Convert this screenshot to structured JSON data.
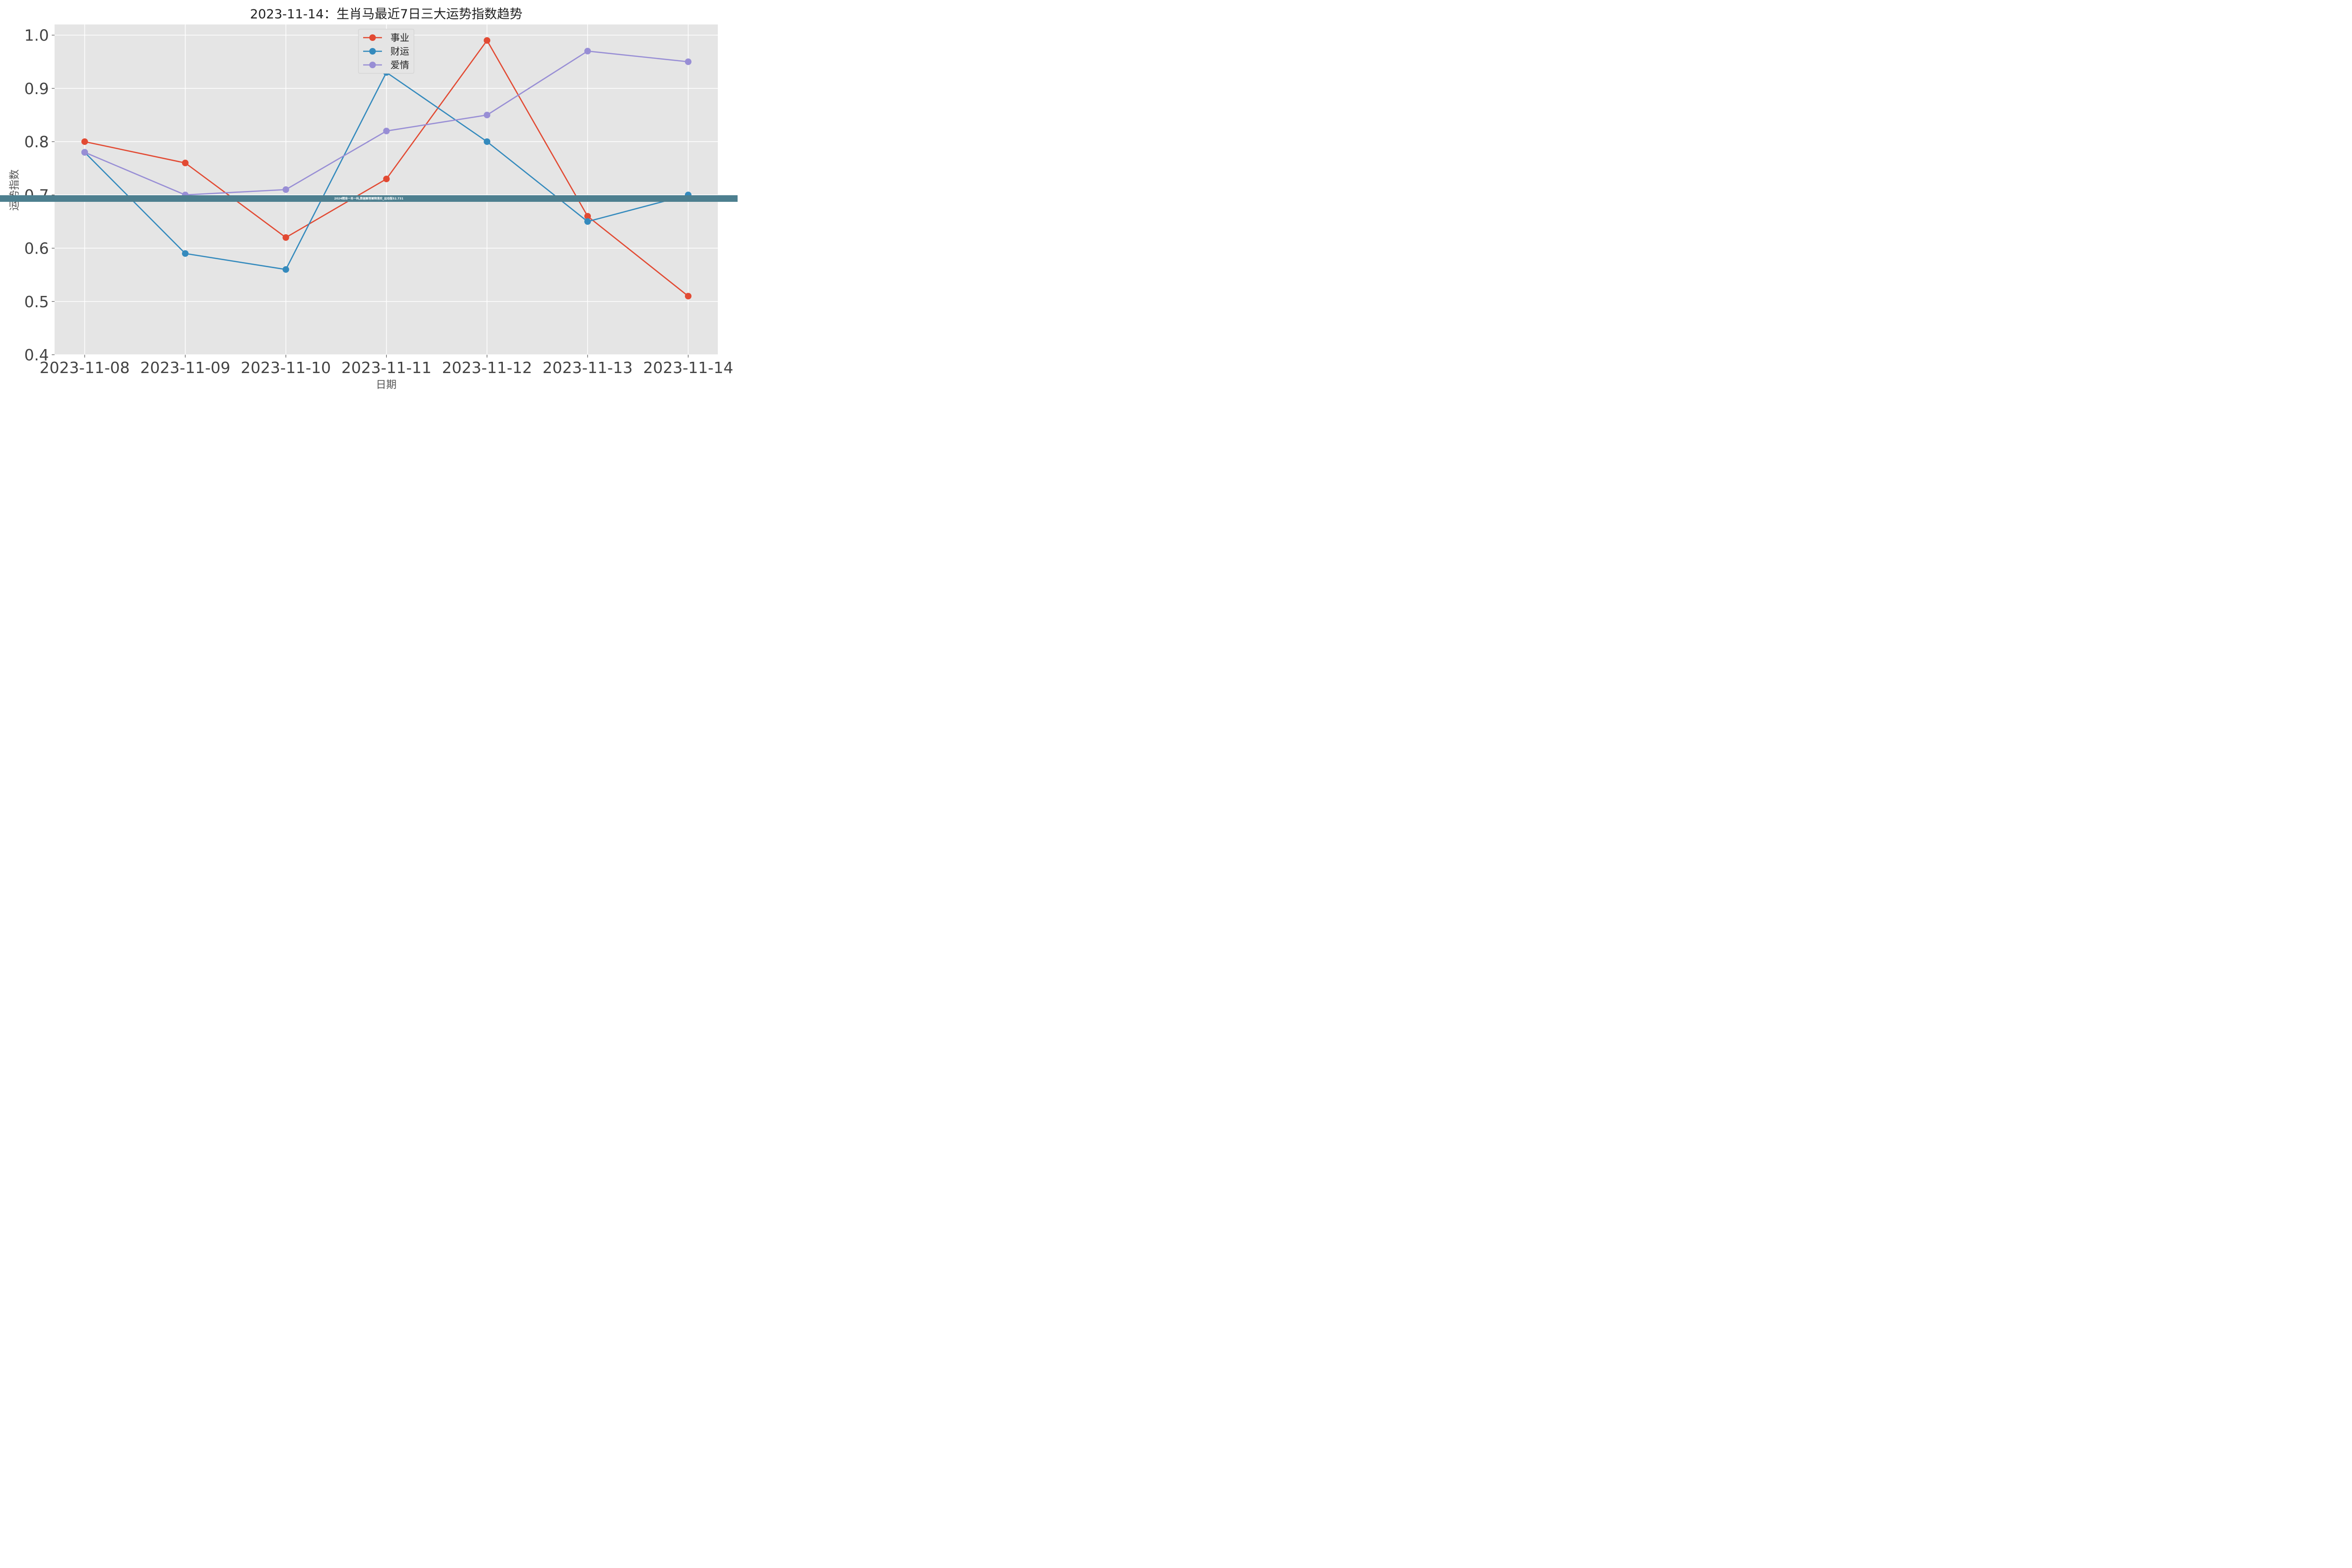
{
  "chart_data": {
    "type": "line",
    "title": "2023-11-14：生肖马最近7日三大运势指数趋势",
    "xlabel": "日期",
    "ylabel": "运势指数",
    "categories": [
      "2023-11-08",
      "2023-11-09",
      "2023-11-10",
      "2023-11-11",
      "2023-11-12",
      "2023-11-13",
      "2023-11-14"
    ],
    "ylim": [
      0.4,
      1.02
    ],
    "yticks": [
      "0.4",
      "0.5",
      "0.6",
      "0.7",
      "0.8",
      "0.9",
      "1.0"
    ],
    "grid": true,
    "legend_position": "top-center",
    "series": [
      {
        "name": "事业",
        "color": "#e24a33",
        "values": [
          0.8,
          0.76,
          0.62,
          0.73,
          0.99,
          0.66,
          0.51
        ]
      },
      {
        "name": "财运",
        "color": "#348abd",
        "values": [
          0.78,
          0.59,
          0.56,
          0.93,
          0.8,
          0.65,
          0.7
        ]
      },
      {
        "name": "爱情",
        "color": "#988ed5",
        "values": [
          0.78,
          0.7,
          0.71,
          0.82,
          0.85,
          0.97,
          0.95
        ]
      }
    ]
  },
  "overlay_banner": {
    "text": "2024精准一肖一码,数据解答解释落实_运动版52.731",
    "color": "#4d7f8f"
  }
}
